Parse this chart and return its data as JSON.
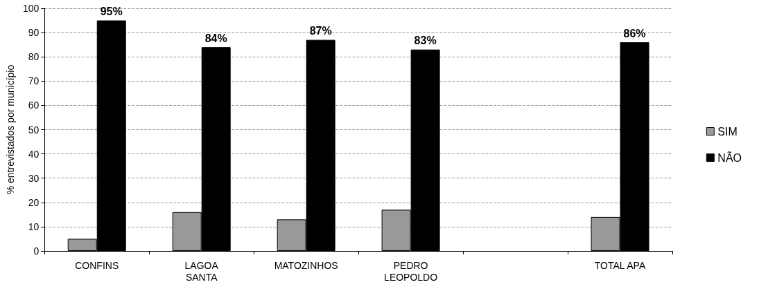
{
  "chart_data": {
    "type": "bar",
    "ylabel": "% entrevistados por município",
    "categories": [
      "CONFINS",
      "LAGOA SANTA",
      "MATOZINHOS",
      "PEDRO LEOPOLDO",
      null,
      "TOTAL APA"
    ],
    "series": [
      {
        "name": "SIM",
        "color": "#999999",
        "values": [
          5,
          16,
          13,
          17,
          null,
          14
        ]
      },
      {
        "name": "NÃO",
        "color": "#000000",
        "values": [
          95,
          84,
          87,
          83,
          null,
          86
        ],
        "value_labels": [
          "95%",
          "84%",
          "87%",
          "83%",
          null,
          "86%"
        ]
      }
    ],
    "ylim": [
      0,
      100
    ],
    "yticks": [
      0,
      10,
      20,
      30,
      40,
      50,
      60,
      70,
      80,
      90,
      100
    ],
    "grid": "y",
    "legend": "right"
  }
}
